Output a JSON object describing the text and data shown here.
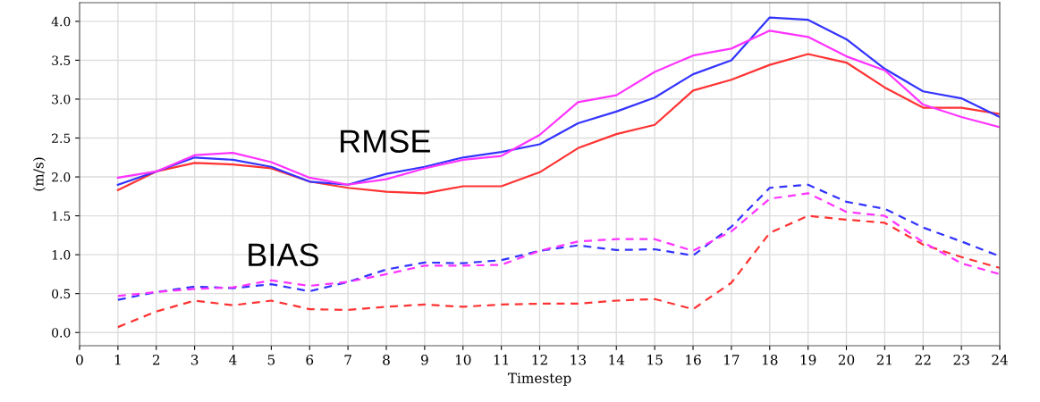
{
  "chart_data": {
    "type": "line",
    "xlabel": "Timestep",
    "ylabel": "(m/s)",
    "x": [
      1,
      2,
      3,
      4,
      5,
      6,
      7,
      8,
      9,
      10,
      11,
      12,
      13,
      14,
      15,
      16,
      17,
      18,
      19,
      20,
      21,
      22,
      23,
      24
    ],
    "series": [
      {
        "color": "#ff3333",
        "line_style": "solid",
        "values": [
          1.83,
          2.07,
          2.18,
          2.16,
          2.11,
          1.94,
          1.86,
          1.81,
          1.79,
          1.88,
          1.88,
          2.06,
          2.37,
          2.55,
          2.67,
          3.11,
          3.25,
          3.44,
          3.58,
          3.47,
          3.15,
          2.89,
          2.89,
          2.81
        ]
      },
      {
        "color": "#3333ff",
        "line_style": "solid",
        "values": [
          1.9,
          2.07,
          2.25,
          2.22,
          2.13,
          1.94,
          1.9,
          2.04,
          2.13,
          2.25,
          2.32,
          2.42,
          2.69,
          2.84,
          3.02,
          3.32,
          3.5,
          4.05,
          4.02,
          3.77,
          3.39,
          3.1,
          3.01,
          2.77
        ]
      },
      {
        "color": "#ff33ff",
        "line_style": "solid",
        "values": [
          1.99,
          2.07,
          2.28,
          2.31,
          2.19,
          1.99,
          1.9,
          1.97,
          2.11,
          2.22,
          2.27,
          2.54,
          2.96,
          3.05,
          3.35,
          3.56,
          3.65,
          3.88,
          3.8,
          3.55,
          3.37,
          2.93,
          2.77,
          2.64
        ]
      },
      {
        "color": "#ff3333",
        "line_style": "dashed",
        "values": [
          0.07,
          0.27,
          0.41,
          0.35,
          0.41,
          0.3,
          0.29,
          0.33,
          0.36,
          0.33,
          0.36,
          0.37,
          0.37,
          0.41,
          0.43,
          0.3,
          0.64,
          1.28,
          1.5,
          1.45,
          1.41,
          1.13,
          0.97,
          0.83
        ]
      },
      {
        "color": "#3333ff",
        "line_style": "dashed",
        "values": [
          0.42,
          0.52,
          0.59,
          0.57,
          0.62,
          0.53,
          0.65,
          0.81,
          0.9,
          0.89,
          0.93,
          1.05,
          1.12,
          1.06,
          1.07,
          0.99,
          1.36,
          1.86,
          1.9,
          1.68,
          1.59,
          1.35,
          1.17,
          0.98
        ]
      },
      {
        "color": "#ff33ff",
        "line_style": "dashed",
        "values": [
          0.47,
          0.52,
          0.56,
          0.58,
          0.67,
          0.6,
          0.65,
          0.75,
          0.86,
          0.86,
          0.87,
          1.05,
          1.17,
          1.2,
          1.2,
          1.05,
          1.3,
          1.72,
          1.79,
          1.55,
          1.5,
          1.16,
          0.89,
          0.75
        ]
      }
    ],
    "xlim": [
      0,
      24
    ],
    "xticks": [
      0,
      1,
      2,
      3,
      4,
      5,
      6,
      7,
      8,
      9,
      10,
      11,
      12,
      13,
      14,
      15,
      16,
      17,
      18,
      19,
      20,
      21,
      22,
      23,
      24
    ],
    "ylim": [
      -0.17,
      4.24
    ],
    "yticks": [
      {
        "value": 0,
        "label": "0.0"
      },
      {
        "value": 0.5,
        "label": "0.5"
      },
      {
        "value": 1,
        "label": "1.0"
      },
      {
        "value": 1.5,
        "label": "1.5"
      },
      {
        "value": 2,
        "label": "2.0"
      },
      {
        "value": 2.5,
        "label": "2.5"
      },
      {
        "value": 3,
        "label": "3.0"
      },
      {
        "value": 3.5,
        "label": "3.5"
      },
      {
        "value": 4,
        "label": "4.0"
      }
    ],
    "grid": true,
    "legend": false,
    "annotations": [
      "RMSE",
      "BIAS"
    ]
  }
}
